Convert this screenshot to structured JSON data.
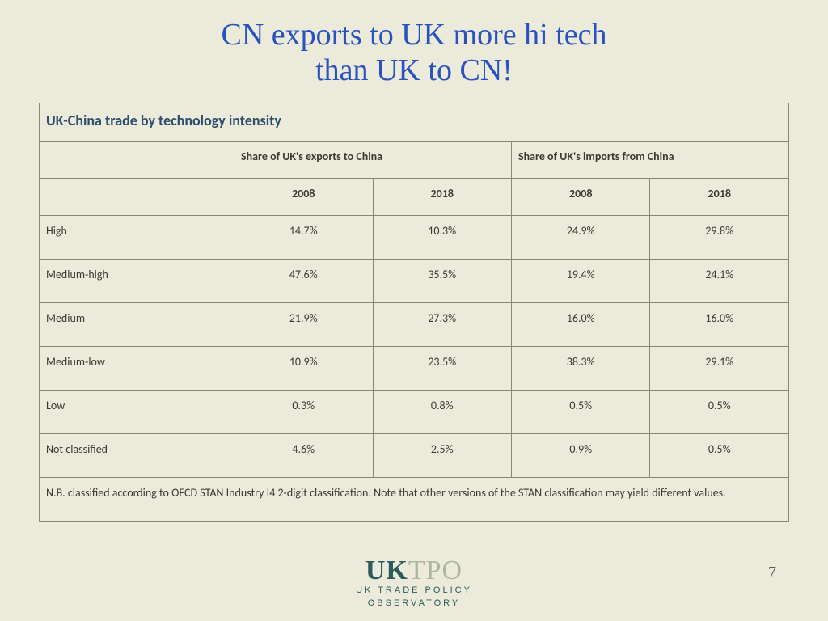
{
  "title_line1": "CN exports to UK more hi tech",
  "title_line2": "than UK to CN!",
  "table": {
    "title": "UK-China trade by technology intensity",
    "group_headers": [
      "Share of UK's exports to China",
      "Share of UK's imports from China"
    ],
    "year_headers": [
      "2008",
      "2018",
      "2008",
      "2018"
    ],
    "rows": [
      {
        "label": "High",
        "vals": [
          "14.7%",
          "10.3%",
          "24.9%",
          "29.8%"
        ]
      },
      {
        "label": "Medium-high",
        "vals": [
          "47.6%",
          "35.5%",
          "19.4%",
          "24.1%"
        ]
      },
      {
        "label": "Medium",
        "vals": [
          "21.9%",
          "27.3%",
          "16.0%",
          "16.0%"
        ]
      },
      {
        "label": "Medium-low",
        "vals": [
          "10.9%",
          "23.5%",
          "38.3%",
          "29.1%"
        ]
      },
      {
        "label": "Low",
        "vals": [
          "0.3%",
          "0.8%",
          "0.5%",
          "0.5%"
        ]
      },
      {
        "label": "Not classified",
        "vals": [
          "4.6%",
          "2.5%",
          "0.9%",
          "0.5%"
        ]
      }
    ],
    "note": "N.B. classified according to OECD STAN Industry I4 2-digit classification. Note that other versions of the STAN classification may yield different values."
  },
  "logo": {
    "main_bold": "UK",
    "main_light": "TPO",
    "sub_line1": "UK TRADE POLICY",
    "sub_line2": "OBSERVATORY"
  },
  "page_number": "7"
}
